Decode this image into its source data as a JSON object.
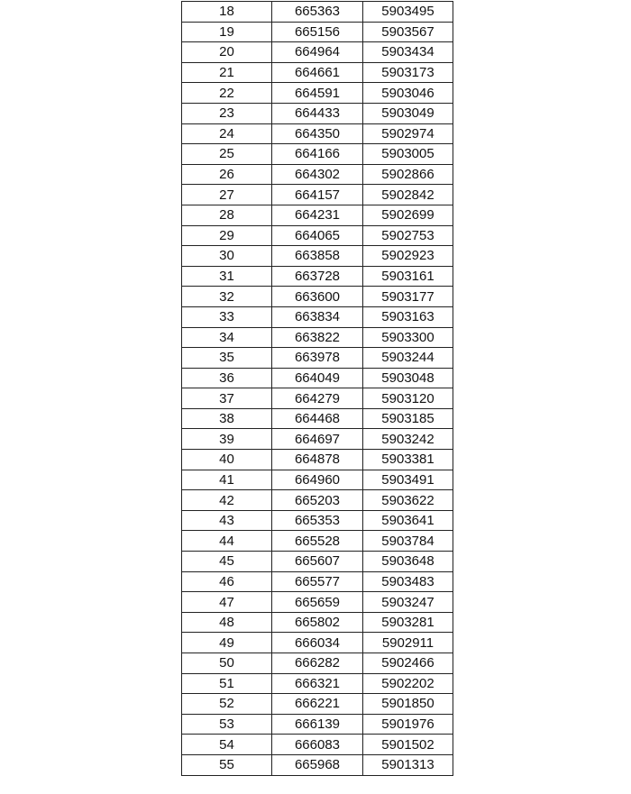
{
  "table": {
    "rows": [
      [
        "18",
        "665363",
        "5903495"
      ],
      [
        "19",
        "665156",
        "5903567"
      ],
      [
        "20",
        "664964",
        "5903434"
      ],
      [
        "21",
        "664661",
        "5903173"
      ],
      [
        "22",
        "664591",
        "5903046"
      ],
      [
        "23",
        "664433",
        "5903049"
      ],
      [
        "24",
        "664350",
        "5902974"
      ],
      [
        "25",
        "664166",
        "5903005"
      ],
      [
        "26",
        "664302",
        "5902866"
      ],
      [
        "27",
        "664157",
        "5902842"
      ],
      [
        "28",
        "664231",
        "5902699"
      ],
      [
        "29",
        "664065",
        "5902753"
      ],
      [
        "30",
        "663858",
        "5902923"
      ],
      [
        "31",
        "663728",
        "5903161"
      ],
      [
        "32",
        "663600",
        "5903177"
      ],
      [
        "33",
        "663834",
        "5903163"
      ],
      [
        "34",
        "663822",
        "5903300"
      ],
      [
        "35",
        "663978",
        "5903244"
      ],
      [
        "36",
        "664049",
        "5903048"
      ],
      [
        "37",
        "664279",
        "5903120"
      ],
      [
        "38",
        "664468",
        "5903185"
      ],
      [
        "39",
        "664697",
        "5903242"
      ],
      [
        "40",
        "664878",
        "5903381"
      ],
      [
        "41",
        "664960",
        "5903491"
      ],
      [
        "42",
        "665203",
        "5903622"
      ],
      [
        "43",
        "665353",
        "5903641"
      ],
      [
        "44",
        "665528",
        "5903784"
      ],
      [
        "45",
        "665607",
        "5903648"
      ],
      [
        "46",
        "665577",
        "5903483"
      ],
      [
        "47",
        "665659",
        "5903247"
      ],
      [
        "48",
        "665802",
        "5903281"
      ],
      [
        "49",
        "666034",
        "5902911"
      ],
      [
        "50",
        "666282",
        "5902466"
      ],
      [
        "51",
        "666321",
        "5902202"
      ],
      [
        "52",
        "666221",
        "5901850"
      ],
      [
        "53",
        "666139",
        "5901976"
      ],
      [
        "54",
        "666083",
        "5901502"
      ],
      [
        "55",
        "665968",
        "5901313"
      ]
    ]
  }
}
